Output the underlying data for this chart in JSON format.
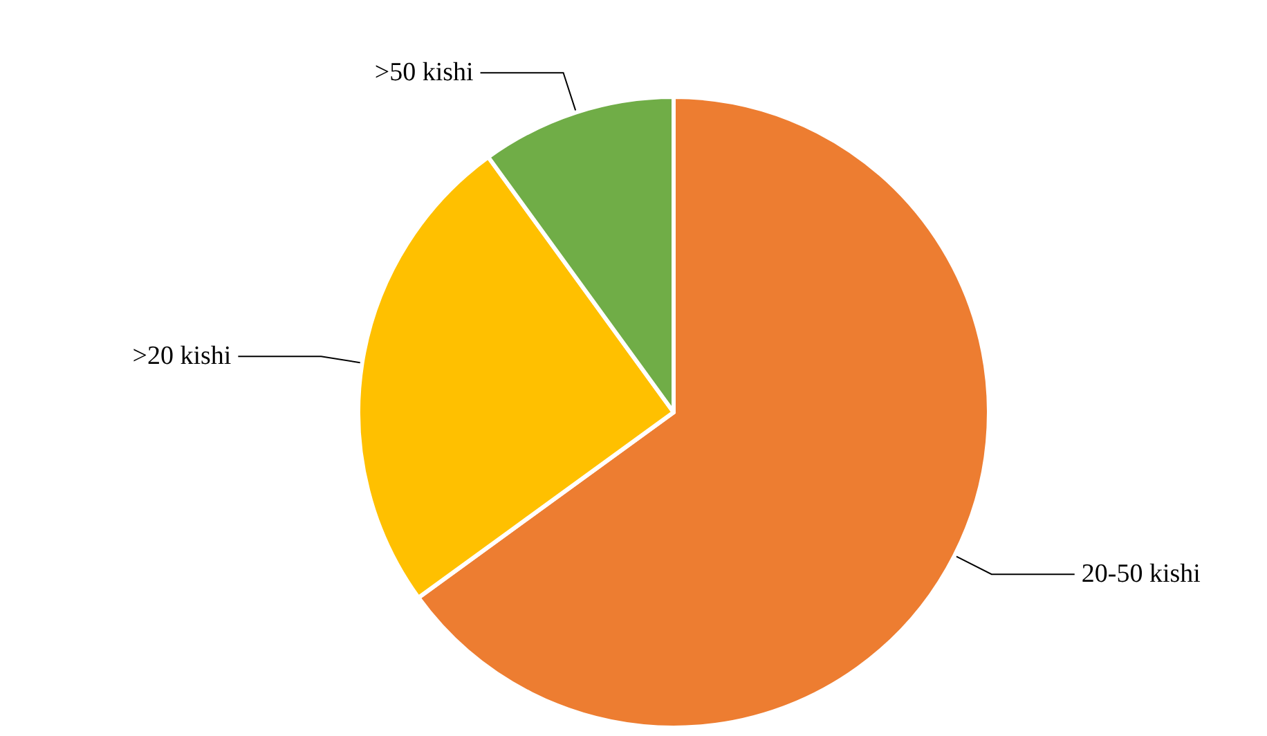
{
  "chart_data": {
    "type": "pie",
    "categories": [
      "20-50 kishi",
      ">20 kishi",
      ">50 kishi"
    ],
    "values": [
      65,
      25,
      10
    ],
    "colors": [
      "#ed7d31",
      "#ffc000",
      "#70ad47"
    ],
    "legend": false
  }
}
